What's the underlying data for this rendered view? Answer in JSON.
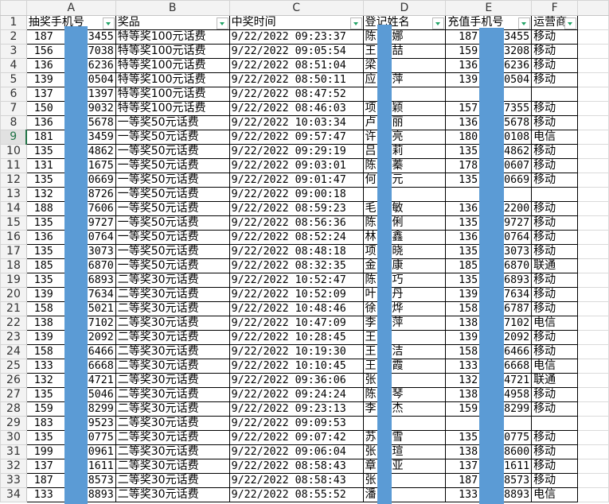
{
  "columns": [
    "A",
    "B",
    "C",
    "D",
    "E",
    "F"
  ],
  "headers": [
    "抽奖手机号",
    "奖品",
    "中奖时间",
    "登记姓名",
    "充值手机号",
    "运营商"
  ],
  "selected_row": 9,
  "redaction_color": "#5b9bd5",
  "rows": [
    {
      "n": "2",
      "a1": "187",
      "a2": "3455",
      "b": "特等奖100元话费",
      "c": "9/22/2022  09:23:37",
      "d1": "陈",
      "d2": "娜",
      "e1": "187",
      "e2": "73455",
      "f": "移动"
    },
    {
      "n": "3",
      "a1": "156",
      "a2": "7038",
      "b": "特等奖100元话费",
      "c": "9/22/2022  09:05:54",
      "d1": "王",
      "d2": "喆",
      "e1": "159",
      "e2": "73208",
      "f": "移动"
    },
    {
      "n": "4",
      "a1": "136",
      "a2": "6236",
      "b": "特等奖100元话费",
      "c": "9/22/2022  08:51:04",
      "d1": "梁",
      "d2": "",
      "e1": "136",
      "e2": "56236",
      "f": "移动"
    },
    {
      "n": "5",
      "a1": "139",
      "a2": "0504",
      "b": "特等奖100元话费",
      "c": "9/22/2022  08:50:11",
      "d1": "应",
      "d2": "萍",
      "e1": "139",
      "e2": "50504",
      "f": "移动"
    },
    {
      "n": "6",
      "a1": "137",
      "a2": "1397",
      "b": "特等奖100元话费",
      "c": "9/22/2022  08:47:52",
      "d1": "",
      "d2": "",
      "e1": "",
      "e2": "",
      "f": ""
    },
    {
      "n": "7",
      "a1": "150",
      "a2": "9032",
      "b": "特等奖100元话费",
      "c": "9/22/2022  08:46:03",
      "d1": "项",
      "d2": "颖",
      "e1": "157",
      "e2": "57355",
      "f": "移动"
    },
    {
      "n": "8",
      "a1": "136",
      "a2": "5678",
      "b": "一等奖50元话费",
      "c": "9/22/2022  10:03:34",
      "d1": "卢",
      "d2": "丽",
      "e1": "136",
      "e2": "35678",
      "f": "移动"
    },
    {
      "n": "9",
      "a1": "181",
      "a2": "3459",
      "b": "一等奖50元话费",
      "c": "9/22/2022  09:57:47",
      "d1": "许",
      "d2": "亮",
      "e1": "180",
      "e2": "0108",
      "f": "电信"
    },
    {
      "n": "10",
      "a1": "135",
      "a2": "4862",
      "b": "一等奖50元话费",
      "c": "9/22/2022  09:29:19",
      "d1": "吕",
      "d2": "莉",
      "e1": "135",
      "e2": "54862",
      "f": "移动"
    },
    {
      "n": "11",
      "a1": "131",
      "a2": "1675",
      "b": "一等奖50元话费",
      "c": "9/22/2022  09:03:01",
      "d1": "陈",
      "d2": "蓁",
      "e1": "178",
      "e2": "70607",
      "f": "移动"
    },
    {
      "n": "12",
      "a1": "135",
      "a2": "0669",
      "b": "一等奖50元话费",
      "c": "9/22/2022  09:01:47",
      "d1": "何",
      "d2": "元",
      "e1": "135",
      "e2": "0669",
      "f": "移动"
    },
    {
      "n": "13",
      "a1": "132",
      "a2": "8726",
      "b": "一等奖50元话费",
      "c": "9/22/2022  09:00:18",
      "d1": "",
      "d2": "",
      "e1": "",
      "e2": "",
      "f": ""
    },
    {
      "n": "14",
      "a1": "188",
      "a2": "7606",
      "b": "一等奖50元话费",
      "c": "9/22/2022  08:59:23",
      "d1": "毛",
      "d2": "敏",
      "e1": "136",
      "e2": "2200",
      "f": "移动"
    },
    {
      "n": "15",
      "a1": "135",
      "a2": "9727",
      "b": "一等奖50元话费",
      "c": "9/22/2022  08:56:36",
      "d1": "陈",
      "d2": "俐",
      "e1": "135",
      "e2": "79727",
      "f": "移动"
    },
    {
      "n": "16",
      "a1": "136",
      "a2": "0764",
      "b": "一等奖50元话费",
      "c": "9/22/2022  08:52:24",
      "d1": "林",
      "d2": "鑫",
      "e1": "136",
      "e2": "0764",
      "f": "移动"
    },
    {
      "n": "17",
      "a1": "135",
      "a2": "3073",
      "b": "一等奖50元话费",
      "c": "9/22/2022  08:48:18",
      "d1": "项",
      "d2": "晓",
      "e1": "135",
      "e2": "73073",
      "f": "移动"
    },
    {
      "n": "18",
      "a1": "185",
      "a2": "6870",
      "b": "一等奖50元话费",
      "c": "9/22/2022  08:32:35",
      "d1": "金",
      "d2": "康",
      "e1": "185",
      "e2": "6870",
      "f": "联通"
    },
    {
      "n": "19",
      "a1": "135",
      "a2": "6893",
      "b": "二等奖30元话费",
      "c": "9/22/2022  10:52:47",
      "d1": "陈",
      "d2": "巧",
      "e1": "135",
      "e2": "36893",
      "f": "移动"
    },
    {
      "n": "20",
      "a1": "139",
      "a2": "7634",
      "b": "二等奖30元话费",
      "c": "9/22/2022  10:52:09",
      "d1": "叶",
      "d2": "丹",
      "e1": "139",
      "e2": "57634",
      "f": "移动"
    },
    {
      "n": "21",
      "a1": "158",
      "a2": "5021",
      "b": "二等奖30元话费",
      "c": "9/22/2022  10:48:46",
      "d1": "徐",
      "d2": "烨",
      "e1": "158",
      "e2": "6787",
      "f": "移动"
    },
    {
      "n": "22",
      "a1": "138",
      "a2": "7102",
      "b": "二等奖30元话费",
      "c": "9/22/2022  10:47:09",
      "d1": "李",
      "d2": "萍",
      "e1": "138",
      "e2": "7102",
      "f": "电信"
    },
    {
      "n": "23",
      "a1": "139",
      "a2": "2092",
      "b": "二等奖30元话费",
      "c": "9/22/2022  10:28:45",
      "d1": "王",
      "d2": "",
      "e1": "139",
      "e2": "2092",
      "f": "移动"
    },
    {
      "n": "24",
      "a1": "158",
      "a2": "6466",
      "b": "二等奖30元话费",
      "c": "9/22/2022  10:19:30",
      "d1": "王",
      "d2": "洁",
      "e1": "158",
      "e2": "36466",
      "f": "移动"
    },
    {
      "n": "25",
      "a1": "133",
      "a2": "6668",
      "b": "二等奖30元话费",
      "c": "9/22/2022  10:10:45",
      "d1": "王",
      "d2": "霞",
      "e1": "133",
      "e2": "36668",
      "f": "电信"
    },
    {
      "n": "26",
      "a1": "132",
      "a2": "4721",
      "b": "二等奖30元话费",
      "c": "9/22/2022  09:36:06",
      "d1": "张",
      "d2": "",
      "e1": "132",
      "e2": "4721",
      "f": "联通"
    },
    {
      "n": "27",
      "a1": "135",
      "a2": "5046",
      "b": "二等奖30元话费",
      "c": "9/22/2022  09:24:24",
      "d1": "陈",
      "d2": "琴",
      "e1": "138",
      "e2": "74958",
      "f": "移动"
    },
    {
      "n": "28",
      "a1": "159",
      "a2": "8299",
      "b": "二等奖30元话费",
      "c": "9/22/2022  09:23:13",
      "d1": "李",
      "d2": "杰",
      "e1": "159",
      "e2": "28299",
      "f": "移动"
    },
    {
      "n": "29",
      "a1": "183",
      "a2": "9523",
      "b": "二等奖30元话费",
      "c": "9/22/2022  09:09:53",
      "d1": "",
      "d2": "",
      "e1": "",
      "e2": "",
      "f": ""
    },
    {
      "n": "30",
      "a1": "135",
      "a2": "0775",
      "b": "二等奖30元话费",
      "c": "9/22/2022  09:07:42",
      "d1": "苏",
      "d2": "雪",
      "e1": "135",
      "e2": "60775",
      "f": "移动"
    },
    {
      "n": "31",
      "a1": "199",
      "a2": "0961",
      "b": "二等奖30元话费",
      "c": "9/22/2022  09:06:04",
      "d1": "张",
      "d2": "瑄",
      "e1": "138",
      "e2": "38600",
      "f": "移动"
    },
    {
      "n": "32",
      "a1": "137",
      "a2": "1611",
      "b": "二等奖30元话费",
      "c": "9/22/2022  08:58:43",
      "d1": "章",
      "d2": "亚",
      "e1": "137",
      "e2": "01611",
      "f": "移动"
    },
    {
      "n": "33",
      "a1": "187",
      "a2": "8573",
      "b": "二等奖30元话费",
      "c": "9/22/2022  08:58:43",
      "d1": "张",
      "d2": "",
      "e1": "187",
      "e2": "08573",
      "f": "移动"
    },
    {
      "n": "34",
      "a1": "133",
      "a2": "8893",
      "b": "二等奖30元话费",
      "c": "9/22/2022  08:55:52",
      "d1": "潘",
      "d2": "",
      "e1": "133",
      "e2": "58893",
      "f": "电信"
    }
  ]
}
